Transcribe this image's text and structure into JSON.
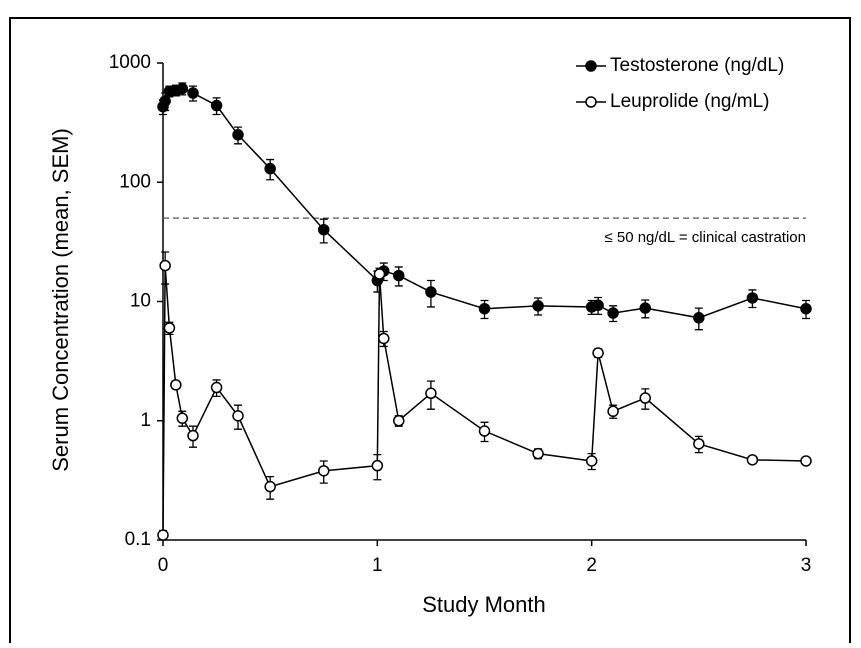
{
  "chart_data": {
    "type": "line",
    "xlabel": "Study Month",
    "ylabel": "Serum Concentration (mean, SEM)",
    "log_y": true,
    "xlim": [
      0,
      3
    ],
    "xticks": [
      0,
      1,
      2,
      3
    ],
    "ylim": [
      0.1,
      1000
    ],
    "yticks": [
      0.1,
      1,
      10,
      100,
      1000
    ],
    "legend": "upper right",
    "reference_line": {
      "value": 50,
      "label": "≤ 50 ng/dL = clinical castration"
    },
    "series": [
      {
        "name": "Testosterone (ng/dL)",
        "color": "#000000",
        "filled": true,
        "x": [
          0,
          0.01,
          0.03,
          0.06,
          0.09,
          0.14,
          0.25,
          0.35,
          0.5,
          0.75,
          1.0,
          1.03,
          1.1,
          1.25,
          1.5,
          1.75,
          2.0,
          2.03,
          2.1,
          2.25,
          2.5,
          2.75,
          3.0
        ],
        "values": [
          430,
          480,
          580,
          590,
          610,
          560,
          440,
          250,
          130,
          40,
          15,
          18,
          16.5,
          12,
          8.7,
          9.2,
          9.0,
          9.3,
          8.0,
          8.8,
          7.3,
          10.7,
          8.7
        ],
        "errors": [
          60,
          80,
          60,
          60,
          70,
          80,
          70,
          40,
          25,
          9,
          3,
          3,
          3,
          3,
          1.5,
          1.5,
          1.2,
          1.5,
          1.2,
          1.5,
          1.5,
          1.8,
          1.5
        ]
      },
      {
        "name": "Leuprolide (ng/mL)",
        "color": "#000000",
        "filled": false,
        "x": [
          0,
          0.01,
          0.03,
          0.06,
          0.09,
          0.14,
          0.25,
          0.35,
          0.5,
          0.75,
          1.0,
          1.01,
          1.03,
          1.1,
          1.25,
          1.5,
          1.75,
          2.0,
          2.03,
          2.1,
          2.25,
          2.5,
          2.75,
          3.0
        ],
        "values": [
          0.11,
          20,
          6.0,
          2.0,
          1.05,
          0.75,
          1.9,
          1.1,
          0.28,
          0.38,
          0.42,
          17,
          4.9,
          1.0,
          1.7,
          0.82,
          0.53,
          0.46,
          3.7,
          1.2,
          1.55,
          0.64,
          0.47,
          0.46
        ],
        "errors": [
          0.01,
          6,
          0.7,
          0.15,
          0.15,
          0.15,
          0.3,
          0.25,
          0.06,
          0.08,
          0.1,
          2,
          0.7,
          0.1,
          0.45,
          0.15,
          0.05,
          0.07,
          0.3,
          0.15,
          0.3,
          0.1,
          0.03,
          0.03
        ]
      }
    ]
  }
}
